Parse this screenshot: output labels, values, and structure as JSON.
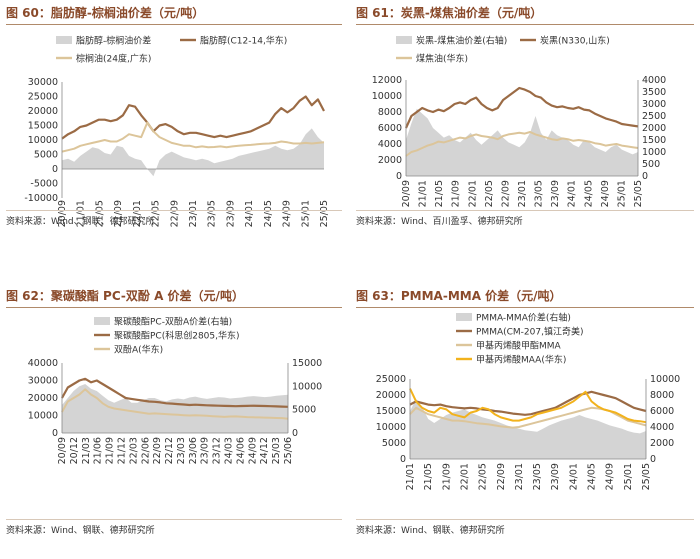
{
  "colors": {
    "title": "#8a4a2a",
    "area": "#d4d4d4",
    "brown": "#9b6b45",
    "tan": "#dcc59a",
    "gold": "#f2b21c"
  },
  "chart_data": [
    {
      "type": "line",
      "title": "图 60：脂肪醇-棕榈油价差（元/吨）",
      "source": "资料来源：Wind、钢联、德邦研究所",
      "legend": [
        "脂肪醇-棕榈油价差",
        "脂肪醇(C12-14,华东)",
        "棕榈油(24度,广东)"
      ],
      "x_ticks": [
        "20/09",
        "21/01",
        "21/05",
        "21/09",
        "22/01",
        "22/05",
        "22/09",
        "23/01",
        "23/05",
        "23/09",
        "24/01",
        "24/05",
        "24/09",
        "25/01",
        "25/05"
      ],
      "y_left": {
        "ticks": [
          30000,
          25000,
          20000,
          15000,
          10000,
          5000,
          0,
          -5000,
          -10000
        ],
        "min": -10000,
        "max": 30000
      },
      "series": [
        {
          "name": "脂肪醇-棕榈油价差",
          "kind": "area",
          "axis": "left",
          "values": [
            3000,
            3500,
            2500,
            4500,
            6000,
            7500,
            7000,
            5500,
            5000,
            8000,
            7500,
            4500,
            3500,
            3000,
            0,
            -2500,
            3000,
            5000,
            6000,
            5000,
            4000,
            3500,
            3000,
            3500,
            3000,
            2000,
            2500,
            3000,
            3500,
            4500,
            5000,
            5500,
            6000,
            6500,
            7000,
            8000,
            7000,
            6500,
            7000,
            8500,
            12000,
            14000,
            11000,
            9000
          ]
        },
        {
          "name": "脂肪醇(C12-14,华东)",
          "kind": "line",
          "axis": "left",
          "values": [
            10500,
            12000,
            13000,
            14500,
            15000,
            16000,
            17000,
            17000,
            16500,
            17000,
            18500,
            22000,
            21500,
            18500,
            16000,
            13000,
            15000,
            15500,
            14500,
            13000,
            12000,
            12500,
            12500,
            12000,
            11500,
            11000,
            11500,
            11000,
            11500,
            12000,
            12500,
            13000,
            14000,
            15000,
            16000,
            19000,
            21000,
            19500,
            21000,
            23500,
            25000,
            22000,
            24000,
            20000
          ]
        },
        {
          "name": "棕榈油(24度,广东)",
          "kind": "line",
          "axis": "left",
          "values": [
            6000,
            6500,
            7000,
            8000,
            8500,
            9000,
            9500,
            10000,
            9500,
            9500,
            10500,
            12000,
            11500,
            11000,
            16000,
            13000,
            11000,
            10000,
            9000,
            8500,
            8000,
            8000,
            7500,
            7800,
            7500,
            7600,
            7800,
            7500,
            7800,
            8000,
            8200,
            8300,
            8500,
            8700,
            8800,
            9000,
            9500,
            9200,
            8800,
            8800,
            9000,
            8800,
            9000,
            9200
          ]
        }
      ]
    },
    {
      "type": "line",
      "title": "图 61：炭黑-煤焦油价差（元/吨）",
      "source": "资料来源：Wind、百川盈孚、德邦研究所",
      "legend": [
        "炭黑-煤焦油价差(右轴)",
        "炭黑(N330,山东)",
        "煤焦油(华东)"
      ],
      "x_ticks": [
        "20/09",
        "21/01",
        "21/05",
        "21/09",
        "22/01",
        "22/05",
        "22/09",
        "23/01",
        "23/05",
        "23/09",
        "24/01",
        "24/05",
        "24/09",
        "25/01",
        "25/05"
      ],
      "y_left": {
        "ticks": [
          12000,
          10000,
          8000,
          6000,
          4000,
          2000,
          0
        ],
        "min": 0,
        "max": 12000
      },
      "y_right": {
        "ticks": [
          4000,
          3500,
          3000,
          2500,
          2000,
          1500,
          1000,
          500,
          0
        ],
        "min": 0,
        "max": 4000
      },
      "series": [
        {
          "name": "炭黑-煤焦油价差(右轴)",
          "kind": "area",
          "axis": "right",
          "values": [
            1500,
            2200,
            2800,
            2600,
            2400,
            2000,
            1800,
            1600,
            1700,
            1500,
            1400,
            1600,
            1800,
            1500,
            1300,
            1500,
            1700,
            1900,
            1600,
            1400,
            1300,
            1200,
            1400,
            1800,
            2500,
            1800,
            1500,
            1900,
            1700,
            1600,
            1500,
            1300,
            1200,
            1500,
            1400,
            1200,
            1100,
            1000,
            1200,
            1300,
            1100,
            1000,
            900,
            1000
          ]
        },
        {
          "name": "炭黑(N330,山东)",
          "kind": "line",
          "axis": "left",
          "values": [
            6000,
            7500,
            8000,
            8500,
            8200,
            8000,
            8300,
            8100,
            8500,
            9000,
            9200,
            9000,
            9500,
            9800,
            9000,
            8500,
            8200,
            8500,
            9500,
            10000,
            10500,
            11000,
            10800,
            10500,
            10000,
            9800,
            9200,
            8800,
            8600,
            8700,
            8500,
            8400,
            8600,
            8300,
            8200,
            7800,
            7500,
            7200,
            7000,
            6800,
            6500,
            6400,
            6300,
            6200
          ]
        },
        {
          "name": "煤焦油(华东)",
          "kind": "line",
          "axis": "left",
          "values": [
            2500,
            3000,
            3200,
            3500,
            3800,
            4000,
            4300,
            4200,
            4400,
            4600,
            4800,
            4700,
            5000,
            5200,
            5000,
            4900,
            4800,
            4600,
            5000,
            5200,
            5300,
            5400,
            5300,
            5500,
            5200,
            5000,
            4800,
            4600,
            4500,
            4700,
            4600,
            4400,
            4500,
            4400,
            4300,
            4100,
            4000,
            3800,
            3900,
            4000,
            3800,
            3700,
            3600,
            3500
          ]
        }
      ]
    },
    {
      "type": "line",
      "title": "图 62：聚碳酸酯 PC-双酚 A 价差（元/吨）",
      "source": "资料来源：Wind、钢联、德邦研究所",
      "legend": [
        "聚碳酸酯PC-双酚A价差(右轴)",
        "聚碳酸酯PC(科思创2805,华东)",
        "双酚A(华东)"
      ],
      "x_ticks": [
        "20/09",
        "20/12",
        "21/03",
        "21/06",
        "21/09",
        "21/12",
        "22/03",
        "22/06",
        "22/09",
        "22/12",
        "23/03",
        "23/06",
        "23/09",
        "23/12",
        "24/03",
        "24/06",
        "24/09",
        "24/12",
        "25/03",
        "25/06"
      ],
      "y_left": {
        "ticks": [
          40000,
          30000,
          20000,
          10000,
          0
        ],
        "min": 0,
        "max": 40000
      },
      "y_right": {
        "ticks": [
          15000,
          10000,
          5000,
          0
        ],
        "min": 0,
        "max": 15000
      },
      "series": [
        {
          "name": "聚碳酸酯PC-双酚A价差(右轴)",
          "kind": "area",
          "axis": "right",
          "values": [
            6000,
            7500,
            9000,
            10000,
            10500,
            9500,
            9000,
            8000,
            7000,
            6500,
            7000,
            7500,
            6500,
            6500,
            7000,
            7500,
            7500,
            7000,
            6800,
            7200,
            7400,
            7200,
            7600,
            7800,
            7500,
            7300,
            7500,
            7700,
            7600,
            7400,
            7500,
            7600,
            7800,
            7900,
            7800,
            7700,
            7800,
            8000,
            8100,
            8200
          ]
        },
        {
          "name": "聚碳酸酯PC(科思创2805,华东)",
          "kind": "line",
          "axis": "left",
          "values": [
            20000,
            26000,
            28000,
            30000,
            31000,
            29000,
            30000,
            28000,
            26000,
            24000,
            22000,
            20000,
            19500,
            19000,
            18500,
            18000,
            17800,
            17500,
            17000,
            16800,
            16500,
            16300,
            16000,
            16200,
            16000,
            15800,
            15700,
            15600,
            15500,
            15400,
            15300,
            15400,
            15500,
            15600,
            15500,
            15400,
            15300,
            15200,
            15100,
            15000
          ]
        },
        {
          "name": "双酚A(华东)",
          "kind": "line",
          "axis": "left",
          "values": [
            12000,
            18000,
            20000,
            22000,
            25000,
            22000,
            20000,
            17000,
            15000,
            14000,
            13500,
            13000,
            12500,
            12000,
            11500,
            11000,
            11200,
            11000,
            10800,
            10600,
            10400,
            10200,
            10000,
            10200,
            10000,
            9800,
            9600,
            9400,
            9200,
            9400,
            9500,
            9300,
            9100,
            9000,
            8900,
            8800,
            8700,
            8600,
            8500,
            8200
          ]
        }
      ]
    },
    {
      "type": "line",
      "title": "图 63：PMMA-MMA 价差（元/吨）",
      "source": "资料来源：Wind、钢联、德邦研究所",
      "legend": [
        "PMMA-MMA价差(右轴)",
        "PMMA(CM-207,镇江奇美)",
        "甲基丙烯酸甲酯MMA",
        "甲基丙烯酸MAA(华东)"
      ],
      "x_ticks": [
        "21/01",
        "21/05",
        "21/09",
        "22/01",
        "22/05",
        "22/09",
        "23/01",
        "23/05",
        "23/09",
        "24/01",
        "24/05",
        "24/09",
        "25/01",
        "25/05"
      ],
      "x_ticks_minor": [
        "21/03",
        "21/07",
        "21/11",
        "22/03",
        "22/07",
        "22/11",
        "23/03",
        "23/07",
        "23/11",
        "24/03",
        "24/07",
        "24/11",
        "25/03",
        "25/07"
      ],
      "y_left": {
        "ticks": [
          25000,
          20000,
          15000,
          10000,
          5000,
          0
        ],
        "min": 0,
        "max": 25000
      },
      "y_right": {
        "ticks": [
          10000,
          8000,
          6000,
          4000,
          2000,
          0
        ],
        "min": 0,
        "max": 10000
      },
      "series": [
        {
          "name": "PMMA-MMA价差(右轴)",
          "kind": "area",
          "axis": "right",
          "values": [
            6000,
            7500,
            6500,
            5000,
            4500,
            5000,
            5500,
            5800,
            6000,
            6200,
            5800,
            5500,
            5200,
            5000,
            4800,
            4500,
            4200,
            4000,
            3800,
            3600,
            3500,
            3400,
            3800,
            4200,
            4500,
            4800,
            5000,
            5200,
            5500,
            5200,
            5000,
            4800,
            4500,
            4200,
            4000,
            3800,
            3500,
            3300,
            3200,
            3500
          ]
        },
        {
          "name": "PMMA(CM-207,镇江奇美)",
          "kind": "line",
          "axis": "left",
          "values": [
            17000,
            18000,
            17500,
            17000,
            16800,
            17000,
            16500,
            16200,
            16000,
            15800,
            16000,
            15800,
            15500,
            15300,
            15000,
            14800,
            14500,
            14200,
            14000,
            13800,
            14000,
            14500,
            15000,
            15500,
            16000,
            17000,
            18000,
            19000,
            20000,
            20500,
            21000,
            20500,
            20000,
            19500,
            19000,
            18000,
            17000,
            16000,
            15500,
            15000
          ]
        },
        {
          "name": "甲基丙烯酸甲酯MMA",
          "kind": "line",
          "axis": "left",
          "values": [
            14000,
            16000,
            15000,
            14000,
            13500,
            13000,
            12500,
            12000,
            12000,
            11800,
            11500,
            11200,
            11000,
            10800,
            10500,
            10200,
            10000,
            9800,
            10000,
            10500,
            11000,
            11500,
            12000,
            12500,
            13000,
            13500,
            14000,
            14500,
            15000,
            15500,
            16000,
            15800,
            15500,
            15000,
            14000,
            13000,
            12000,
            11500,
            11000,
            10500
          ]
        },
        {
          "name": "甲基丙烯酸MAA(华东)",
          "kind": "line",
          "axis": "left",
          "values": [
            22000,
            18000,
            16000,
            15000,
            14500,
            16000,
            15500,
            14000,
            13500,
            13000,
            14500,
            15000,
            16000,
            15500,
            14000,
            13000,
            12500,
            12000,
            12000,
            12500,
            13000,
            14000,
            14500,
            15000,
            15500,
            16000,
            17000,
            18000,
            19500,
            21000,
            18000,
            16500,
            15500,
            15000,
            14500,
            13500,
            12500,
            12000,
            11800,
            11500
          ]
        }
      ]
    }
  ]
}
